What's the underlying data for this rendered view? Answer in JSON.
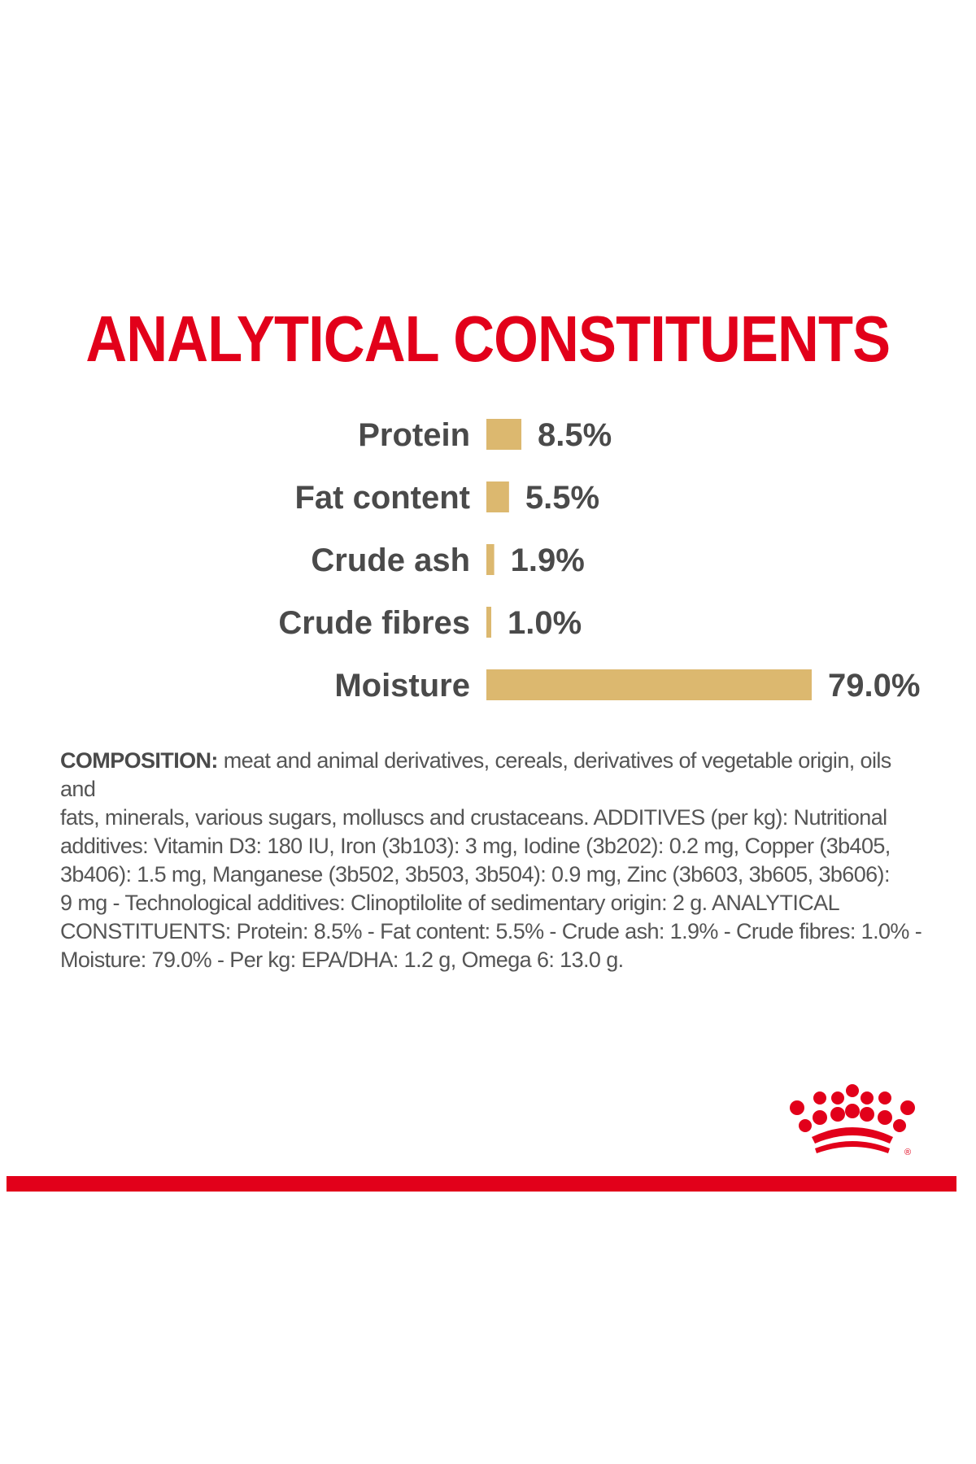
{
  "colors": {
    "brand_red": "#e2001a",
    "bar_gold": "#dcb86f",
    "label_text": "#4a4a4a",
    "body_text": "#555555"
  },
  "heading": "ANALYTICAL CONSTITUENTS",
  "chart_data": {
    "type": "bar",
    "orientation": "horizontal",
    "title": "ANALYTICAL CONSTITUENTS",
    "unit": "%",
    "categories": [
      "Protein",
      "Fat content",
      "Crude ash",
      "Crude fibres",
      "Moisture"
    ],
    "values": [
      8.5,
      5.5,
      1.9,
      1.0,
      79.0
    ],
    "value_labels": [
      "8.5%",
      "5.5%",
      "1.9%",
      "1.0%",
      "79.0%"
    ],
    "xlim": [
      0,
      79.0
    ],
    "grid": false,
    "axes_visible": false
  },
  "composition": {
    "heading": "COMPOSITION:",
    "lines": [
      " meat and animal derivatives, cereals, derivatives of vegetable origin, oils and",
      "fats, minerals, various sugars, molluscs and crustaceans. ADDITIVES (per kg): Nutritional",
      "additives: Vitamin D3: 180 IU, Iron (3b103): 3 mg, Iodine (3b202): 0.2 mg, Copper (3b405,",
      "3b406): 1.5 mg, Manganese (3b502, 3b503, 3b504): 0.9 mg, Zinc (3b603, 3b605, 3b606):",
      "9 mg - Technological additives: Clinoptilolite of sedimentary origin: 2 g. ANALYTICAL",
      "CONSTITUENTS: Protein: 8.5% - Fat content: 5.5% - Crude ash: 1.9% - Crude fibres: 1.0% -",
      "Moisture: 79.0% - Per kg: EPA/DHA: 1.2 g, Omega 6: 13.0 g."
    ]
  },
  "logo": {
    "icon": "crown-icon",
    "mark": "®"
  }
}
